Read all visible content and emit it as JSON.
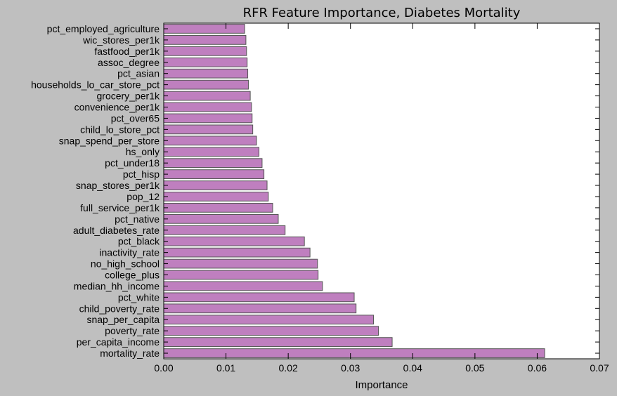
{
  "chart_data": {
    "type": "bar",
    "orientation": "horizontal",
    "title": "RFR Feature Importance, Diabetes Mortality",
    "xlabel": "Importance",
    "ylabel": "",
    "xlim": [
      0,
      0.07
    ],
    "x_ticks": [
      "0.00",
      "0.01",
      "0.02",
      "0.03",
      "0.04",
      "0.05",
      "0.06",
      "0.07"
    ],
    "grid": false,
    "bar_color": "#bf7fbf",
    "bar_edge_color": "#555555",
    "categories": [
      "mortality_rate",
      "per_capita_income",
      "poverty_rate",
      "snap_per_capita",
      "child_poverty_rate",
      "pct_white",
      "median_hh_income",
      "college_plus",
      "no_high_school",
      "inactivity_rate",
      "pct_black",
      "adult_diabetes_rate",
      "pct_native",
      "full_service_per1k",
      "pop_12",
      "snap_stores_per1k",
      "pct_hisp",
      "pct_under18",
      "hs_only",
      "snap_spend_per_store",
      "child_lo_store_pct",
      "pct_over65",
      "convenience_per1k",
      "grocery_per1k",
      "households_lo_car_store_pct",
      "pct_asian",
      "assoc_degree",
      "fastfood_per1k",
      "wic_stores_per1k",
      "pct_employed_agriculture"
    ],
    "values": [
      0.0612,
      0.0367,
      0.0345,
      0.0337,
      0.0309,
      0.0306,
      0.0255,
      0.0248,
      0.0247,
      0.0235,
      0.0226,
      0.0195,
      0.0184,
      0.0175,
      0.0168,
      0.0166,
      0.0161,
      0.0158,
      0.0153,
      0.0149,
      0.0143,
      0.0142,
      0.0141,
      0.0139,
      0.0136,
      0.0135,
      0.0134,
      0.0133,
      0.0132,
      0.013
    ]
  }
}
